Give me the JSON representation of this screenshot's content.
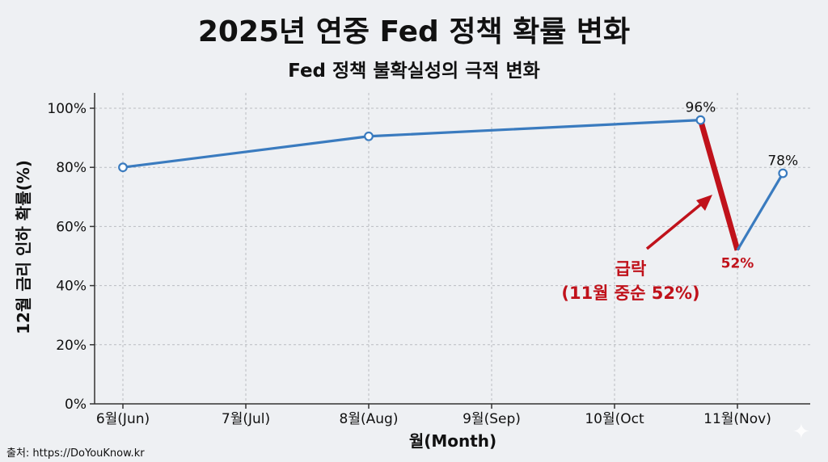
{
  "header": {
    "title": "2025년 연중 Fed 정책 확률 변화",
    "subtitle": "Fed 정책 불확실성의 극적 변화"
  },
  "source": "출처: https://DoYouKnow.kr",
  "chart_data": {
    "type": "line",
    "categories": [
      "6월(Jun)",
      "7월(Jul)",
      "8월(Aug)",
      "9월(Sep)",
      "10월(Oct",
      "11월(Nov)"
    ],
    "points": [
      {
        "x": 6.0,
        "y": 80,
        "label": ""
      },
      {
        "x": 8.0,
        "y": 90.5,
        "label": ""
      },
      {
        "x": 10.7,
        "y": 96,
        "label": "96%"
      },
      {
        "x": 11.0,
        "y": 52,
        "label": "52%"
      },
      {
        "x": 11.37,
        "y": 78,
        "label": "78%"
      }
    ],
    "drop_segment": {
      "from_index": 2,
      "to_index": 3
    },
    "xlabel": "월(Month)",
    "ylabel": "12월 금리 인하 확률(%)",
    "ylim": [
      0,
      100
    ],
    "yticks": [
      "0%",
      "20%",
      "40%",
      "60%",
      "80%",
      "100%"
    ],
    "grid": true,
    "annotation": {
      "line1": "급락",
      "line2": "(11월 중순 52%)"
    },
    "colors": {
      "line": "#3a7bbf",
      "drop": "#c0121b",
      "marker_fill": "#ffffff"
    }
  }
}
